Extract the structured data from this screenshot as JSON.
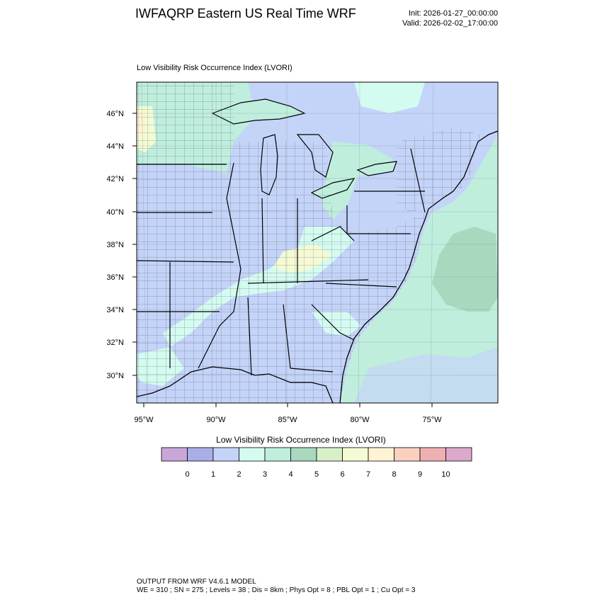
{
  "header": {
    "title": "IWFAQRP Eastern US Real Time WRF",
    "init": "Init: 2026-01-27_00:00:00",
    "valid": "Valid: 2026-02-02_17:00:00"
  },
  "map": {
    "subtitle": "Low Visibility Risk Occurrence Index   (LVORI)",
    "lat_labels": [
      "46°N",
      "44°N",
      "42°N",
      "40°N",
      "38°N",
      "36°N",
      "34°N",
      "32°N",
      "30°N"
    ],
    "lon_labels": [
      "95°W",
      "90°W",
      "85°W",
      "80°W",
      "75°W"
    ]
  },
  "colorbar": {
    "title": "Low Visibility Risk Occurrence Index  (LVORI)",
    "labels": [
      "0",
      "1",
      "2",
      "3",
      "4",
      "5",
      "6",
      "7",
      "8",
      "9",
      "10"
    ],
    "colors": [
      "#c9a6d8",
      "#a9aee8",
      "#c4d4f8",
      "#d4fbf0",
      "#bfeedd",
      "#a8d9bf",
      "#d8f0c8",
      "#f4fbd4",
      "#fff3d4",
      "#fbd0c0",
      "#eeb0b0",
      "#dca8cc"
    ]
  },
  "footer": {
    "line1": "OUTPUT FROM WRF V4.6.1 MODEL",
    "line2": "WE = 310 ; SN = 275 ; Levels = 38 ; Dis = 8km ; Phys Opt = 8 ; PBL Opt = 1 ; Cu Opt = 3"
  }
}
